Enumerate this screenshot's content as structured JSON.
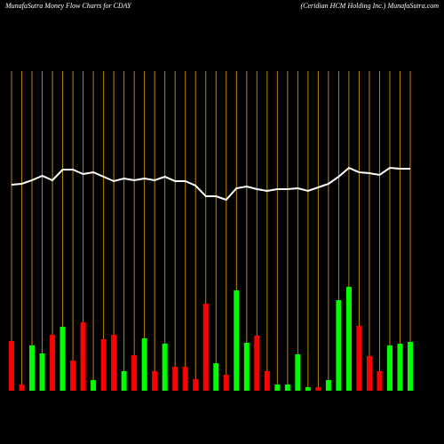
{
  "chart_data": {
    "type": "money-flow",
    "title": "MunafaSutra  Money Flow  Charts for CDAY",
    "subtitle": "(Ceridian  HCM Holding Inc.) MunafaSutra.com",
    "categories": [
      null,
      null,
      null,
      null,
      null,
      null,
      null,
      null,
      null,
      null,
      null,
      null,
      null,
      null,
      null,
      null,
      null,
      null,
      null,
      null,
      null,
      null,
      null,
      null,
      null,
      null,
      null,
      null,
      null,
      null,
      null,
      null,
      null,
      null,
      null,
      null,
      null,
      null,
      null,
      null
    ],
    "ylim": [
      0,
      360
    ],
    "series": [
      {
        "type": "bar",
        "values": [
          56,
          7,
          51,
          42,
          63,
          72,
          34,
          77,
          12,
          58,
          63,
          22,
          40,
          59,
          22,
          53,
          27,
          27,
          13,
          98,
          31,
          18,
          113,
          54,
          62,
          22,
          7,
          7,
          41,
          4,
          4,
          12,
          102,
          117,
          73,
          39,
          22,
          51,
          53,
          55
        ],
        "colors": [
          "#ff0000",
          "#ff0000",
          "#00ff00",
          "#00ff00",
          "#ff0000",
          "#00ff00",
          "#ff0000",
          "#ff0000",
          "#00ff00",
          "#ff0000",
          "#ff0000",
          "#00ff00",
          "#ff0000",
          "#00ff00",
          "#ff0000",
          "#00ff00",
          "#ff0000",
          "#ff0000",
          "#ff0000",
          "#ff0000",
          "#00ff00",
          "#ff0000",
          "#00ff00",
          "#00ff00",
          "#ff0000",
          "#ff0000",
          "#00ff00",
          "#00ff00",
          "#00ff00",
          "#00ff00",
          "#ff0000",
          "#00ff00",
          "#00ff00",
          "#00ff00",
          "#ff0000",
          "#ff0000",
          "#ff0000",
          "#00ff00",
          "#00ff00",
          "#00ff00"
        ]
      },
      {
        "type": "line",
        "color": "#ffffff",
        "values": [
          232,
          233,
          237,
          242,
          237,
          249,
          249,
          244,
          246,
          241,
          236,
          239,
          237,
          239,
          237,
          241,
          236,
          236,
          231,
          219,
          219,
          215,
          228,
          230,
          227,
          225,
          227,
          227,
          228,
          225,
          229,
          233,
          241,
          251,
          246,
          245,
          243,
          251,
          250,
          250
        ]
      }
    ],
    "gridline_color": "#b8860b"
  }
}
